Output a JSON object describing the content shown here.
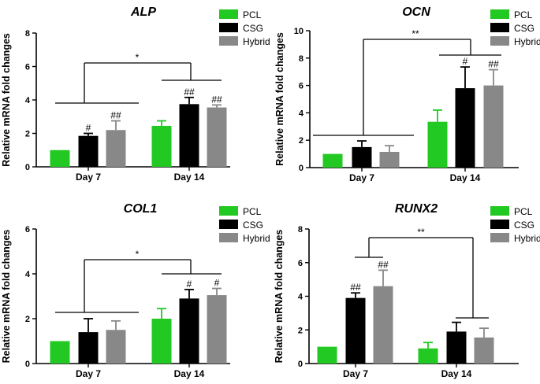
{
  "colors": {
    "PCL": "#22c922",
    "CSG": "#000000",
    "Hybrid": "#888888"
  },
  "chart_data": [
    {
      "type": "bar",
      "title": "ALP",
      "ylabel": "Relative mRNA fold changes",
      "ylim": [
        0,
        8
      ],
      "yticks": [
        "0",
        "2",
        "4",
        "6",
        "8"
      ],
      "categories": [
        "Day 7",
        "Day 14"
      ],
      "series": [
        {
          "name": "PCL",
          "values": [
            1.0,
            2.45
          ],
          "errors": [
            0.0,
            0.3
          ],
          "marks": [
            "",
            ""
          ]
        },
        {
          "name": "CSG",
          "values": [
            1.85,
            3.75
          ],
          "errors": [
            0.15,
            0.4
          ],
          "marks": [
            "#",
            "##"
          ]
        },
        {
          "name": "Hybrid",
          "values": [
            2.2,
            3.55
          ],
          "errors": [
            0.55,
            0.15
          ],
          "marks": [
            "##",
            "##"
          ]
        }
      ],
      "significance": "*"
    },
    {
      "type": "bar",
      "title": "OCN",
      "ylabel": "Relative mRNA fold changes",
      "ylim": [
        0,
        10
      ],
      "yticks": [
        "0",
        "2",
        "4",
        "6",
        "8",
        "10"
      ],
      "categories": [
        "Day 7",
        "Day 14"
      ],
      "series": [
        {
          "name": "PCL",
          "values": [
            1.0,
            3.35
          ],
          "errors": [
            0.0,
            0.85
          ],
          "marks": [
            "",
            ""
          ]
        },
        {
          "name": "CSG",
          "values": [
            1.5,
            5.8
          ],
          "errors": [
            0.45,
            1.55
          ],
          "marks": [
            "",
            "#"
          ]
        },
        {
          "name": "Hybrid",
          "values": [
            1.15,
            6.0
          ],
          "errors": [
            0.45,
            1.15
          ],
          "marks": [
            "",
            "##"
          ]
        }
      ],
      "significance": "**"
    },
    {
      "type": "bar",
      "title": "COL1",
      "ylabel": "Relative mRNA fold changes",
      "ylim": [
        0,
        6
      ],
      "yticks": [
        "0",
        "2",
        "4",
        "6"
      ],
      "categories": [
        "Day 7",
        "Day 14"
      ],
      "series": [
        {
          "name": "PCL",
          "values": [
            1.0,
            2.0
          ],
          "errors": [
            0.0,
            0.45
          ],
          "marks": [
            "",
            ""
          ]
        },
        {
          "name": "CSG",
          "values": [
            1.4,
            2.9
          ],
          "errors": [
            0.6,
            0.4
          ],
          "marks": [
            "",
            "#"
          ]
        },
        {
          "name": "Hybrid",
          "values": [
            1.5,
            3.05
          ],
          "errors": [
            0.4,
            0.3
          ],
          "marks": [
            "",
            "#"
          ]
        }
      ],
      "significance": "*"
    },
    {
      "type": "bar",
      "title": "RUNX2",
      "ylabel": "Relative mRNA fold changes",
      "ylim": [
        0,
        8
      ],
      "yticks": [
        "0",
        "2",
        "4",
        "6",
        "8"
      ],
      "categories": [
        "Day 7",
        "Day 14"
      ],
      "series": [
        {
          "name": "PCL",
          "values": [
            1.0,
            0.9
          ],
          "errors": [
            0.0,
            0.35
          ],
          "marks": [
            "",
            ""
          ]
        },
        {
          "name": "CSG",
          "values": [
            3.9,
            1.9
          ],
          "errors": [
            0.3,
            0.55
          ],
          "marks": [
            "##",
            ""
          ]
        },
        {
          "name": "Hybrid",
          "values": [
            4.6,
            1.55
          ],
          "errors": [
            0.95,
            0.55
          ],
          "marks": [
            "##",
            ""
          ]
        }
      ],
      "significance": "**"
    }
  ]
}
